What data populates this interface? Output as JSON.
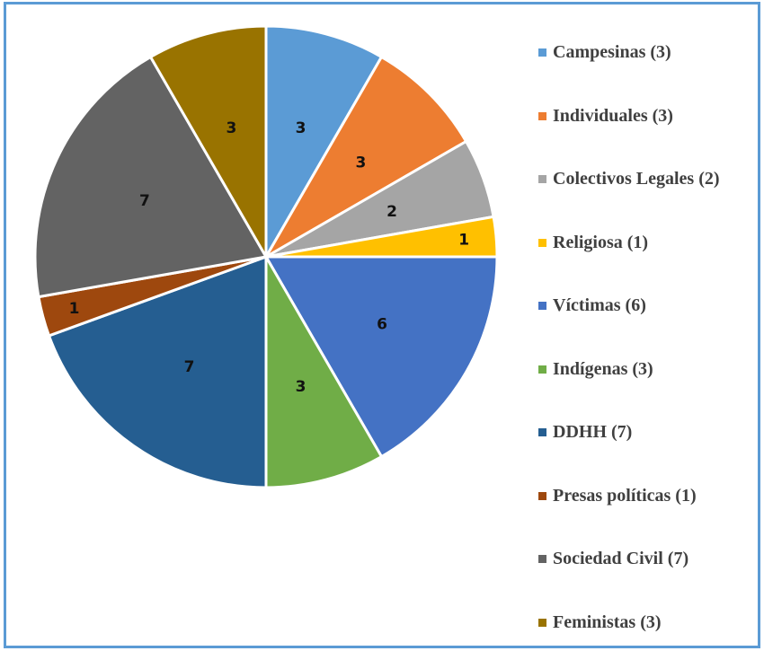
{
  "chart_data": {
    "type": "pie",
    "categories": [
      "Campesinas",
      "Individuales",
      "Colectivos Legales",
      "Religiosa",
      "Víctimas",
      "Indígenas",
      "DDHH",
      "Presas políticas",
      "Sociedad Civil",
      "Feministas"
    ],
    "values": [
      3,
      3,
      2,
      1,
      6,
      3,
      7,
      1,
      7,
      3
    ],
    "data_labels": [
      "3",
      "3",
      "2",
      "1",
      "6",
      "3",
      "7",
      "1",
      "7",
      "3"
    ],
    "legend_labels": [
      "Campesinas (3)",
      "Individuales (3)",
      "Colectivos Legales (2)",
      " Religiosa (1)",
      "Víctimas (6)",
      "Indígenas (3)",
      "DDHH (7)",
      "Presas políticas (1)",
      "Sociedad Civil (7)",
      "Feministas (3)"
    ],
    "colors": [
      "#5b9bd5",
      "#ed7d31",
      "#a5a5a5",
      "#ffc000",
      "#4472c4",
      "#70ad47",
      "#255e91",
      "#9e480e",
      "#636363",
      "#997300"
    ],
    "legend_position": "right",
    "start_angle": "12 o'clock, clockwise"
  },
  "frame_color": "#5b9bd5"
}
